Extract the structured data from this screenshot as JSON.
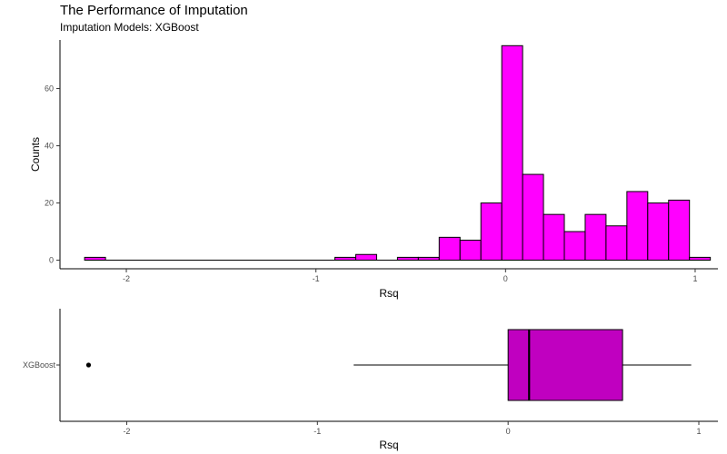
{
  "page": {
    "title": "The Performance of Imputation",
    "subtitle": "Imputation Models: XGBoost"
  },
  "chart_data": [
    {
      "type": "histogram",
      "xlabel": "Rsq",
      "ylabel": "Counts",
      "xlim": [
        -2.35,
        1.12
      ],
      "ylim": [
        -3,
        77
      ],
      "xticks": [
        -2,
        -1,
        0,
        1
      ],
      "yticks": [
        0,
        20,
        40,
        60
      ],
      "grid": false,
      "bar_fill": "#ff00ff",
      "bar_stroke": "#000000",
      "bins": [
        {
          "x0": -2.22,
          "x1": -2.11,
          "count": 1
        },
        {
          "x0": -2.11,
          "x1": -2.0,
          "count": 0
        },
        {
          "x0": -2.0,
          "x1": -1.89,
          "count": 0
        },
        {
          "x0": -1.89,
          "x1": -1.78,
          "count": 0
        },
        {
          "x0": -1.78,
          "x1": -1.67,
          "count": 0
        },
        {
          "x0": -1.67,
          "x1": -1.56,
          "count": 0
        },
        {
          "x0": -1.56,
          "x1": -1.45,
          "count": 0
        },
        {
          "x0": -1.45,
          "x1": -1.34,
          "count": 0
        },
        {
          "x0": -1.34,
          "x1": -1.23,
          "count": 0
        },
        {
          "x0": -1.23,
          "x1": -1.12,
          "count": 0
        },
        {
          "x0": -1.12,
          "x1": -1.01,
          "count": 0
        },
        {
          "x0": -1.01,
          "x1": -0.9,
          "count": 0
        },
        {
          "x0": -0.9,
          "x1": -0.79,
          "count": 1
        },
        {
          "x0": -0.79,
          "x1": -0.68,
          "count": 2
        },
        {
          "x0": -0.68,
          "x1": -0.57,
          "count": 0
        },
        {
          "x0": -0.57,
          "x1": -0.46,
          "count": 1
        },
        {
          "x0": -0.46,
          "x1": -0.35,
          "count": 1
        },
        {
          "x0": -0.35,
          "x1": -0.24,
          "count": 8
        },
        {
          "x0": -0.24,
          "x1": -0.13,
          "count": 7
        },
        {
          "x0": -0.13,
          "x1": -0.02,
          "count": 20
        },
        {
          "x0": -0.02,
          "x1": 0.09,
          "count": 75
        },
        {
          "x0": 0.09,
          "x1": 0.2,
          "count": 30
        },
        {
          "x0": 0.2,
          "x1": 0.31,
          "count": 16
        },
        {
          "x0": 0.31,
          "x1": 0.42,
          "count": 10
        },
        {
          "x0": 0.42,
          "x1": 0.53,
          "count": 16
        },
        {
          "x0": 0.53,
          "x1": 0.64,
          "count": 12
        },
        {
          "x0": 0.64,
          "x1": 0.75,
          "count": 24
        },
        {
          "x0": 0.75,
          "x1": 0.86,
          "count": 20
        },
        {
          "x0": 0.86,
          "x1": 0.97,
          "count": 21
        },
        {
          "x0": 0.97,
          "x1": 1.08,
          "count": 1
        }
      ]
    },
    {
      "type": "boxplot",
      "xlabel": "Rsq",
      "categories": [
        "XGBoost"
      ],
      "xlim": [
        -2.35,
        1.1
      ],
      "xticks": [
        -2,
        -1,
        0,
        1
      ],
      "grid": false,
      "box_fill": "#c000c0",
      "series": [
        {
          "min": -0.81,
          "q1": 0.0,
          "median": 0.11,
          "q3": 0.6,
          "max": 0.96,
          "outliers": [
            -2.2
          ]
        }
      ]
    }
  ]
}
